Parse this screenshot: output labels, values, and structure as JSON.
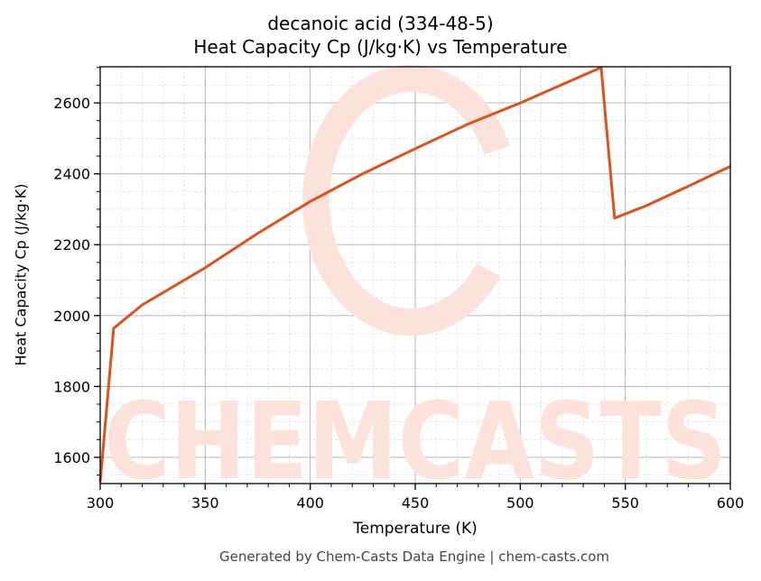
{
  "title": {
    "line1": "decanoic acid (334-48-5)",
    "line2": "Heat Capacity Cp (J/kg·K) vs Temperature"
  },
  "footer": "Generated by Chem-Casts Data Engine | chem-casts.com",
  "watermark": {
    "text": "CHEMCASTS",
    "color": "#fde2dc"
  },
  "colors": {
    "line": "#d9531e",
    "major_grid": "#b0b0b0",
    "minor_grid": "#dddddd",
    "axis": "#000000"
  },
  "chart_data": {
    "type": "line",
    "title": "decanoic acid (334-48-5)\nHeat Capacity Cp (J/kg·K) vs Temperature",
    "xlabel": "Temperature (K)",
    "ylabel": "Heat Capacity Cp (J/kg·K)",
    "xlim": [
      300,
      600
    ],
    "ylim": [
      1526,
      2702
    ],
    "xticks": [
      300,
      350,
      400,
      450,
      500,
      550,
      600
    ],
    "yticks": [
      1600,
      1800,
      2000,
      2200,
      2400,
      2600
    ],
    "grid": true,
    "legend": null,
    "series": [
      {
        "name": "Cp",
        "x": [
          300,
          306.4,
          320,
          350,
          375,
          400,
          425,
          450,
          475,
          500,
          520,
          538.5,
          544.9,
          560,
          580,
          600
        ],
        "y": [
          1530,
          1964,
          2030,
          2135,
          2232,
          2322,
          2400,
          2471,
          2540,
          2600,
          2652,
          2700,
          2275,
          2310,
          2365,
          2421
        ]
      }
    ]
  }
}
